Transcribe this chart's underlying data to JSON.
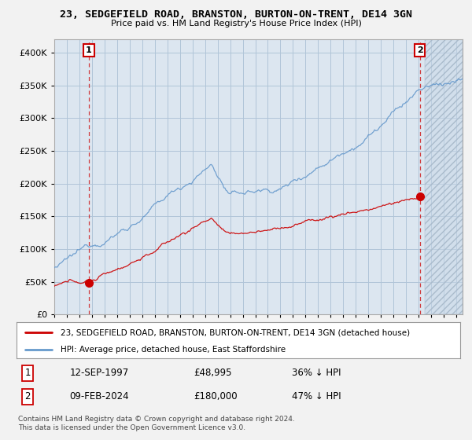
{
  "title": "23, SEDGEFIELD ROAD, BRANSTON, BURTON-ON-TRENT, DE14 3GN",
  "subtitle": "Price paid vs. HM Land Registry's House Price Index (HPI)",
  "legend_line1": "23, SEDGEFIELD ROAD, BRANSTON, BURTON-ON-TRENT, DE14 3GN (detached house)",
  "legend_line2": "HPI: Average price, detached house, East Staffordshire",
  "annotation1_date": "12-SEP-1997",
  "annotation1_price": "£48,995",
  "annotation1_hpi": "36% ↓ HPI",
  "annotation2_date": "09-FEB-2024",
  "annotation2_price": "£180,000",
  "annotation2_hpi": "47% ↓ HPI",
  "footer": "Contains HM Land Registry data © Crown copyright and database right 2024.\nThis data is licensed under the Open Government Licence v3.0.",
  "red_color": "#cc0000",
  "blue_color": "#6699cc",
  "plot_bg_color": "#dce6f0",
  "grid_color": "#b0c4d8",
  "sale1_x": 1997.75,
  "sale1_y": 48995,
  "sale2_x": 2024.1,
  "sale2_y": 180000,
  "xmin": 1995.0,
  "xmax": 2027.5,
  "ylim": [
    0,
    420000
  ],
  "yticks": [
    0,
    50000,
    100000,
    150000,
    200000,
    250000,
    300000,
    350000,
    400000
  ]
}
